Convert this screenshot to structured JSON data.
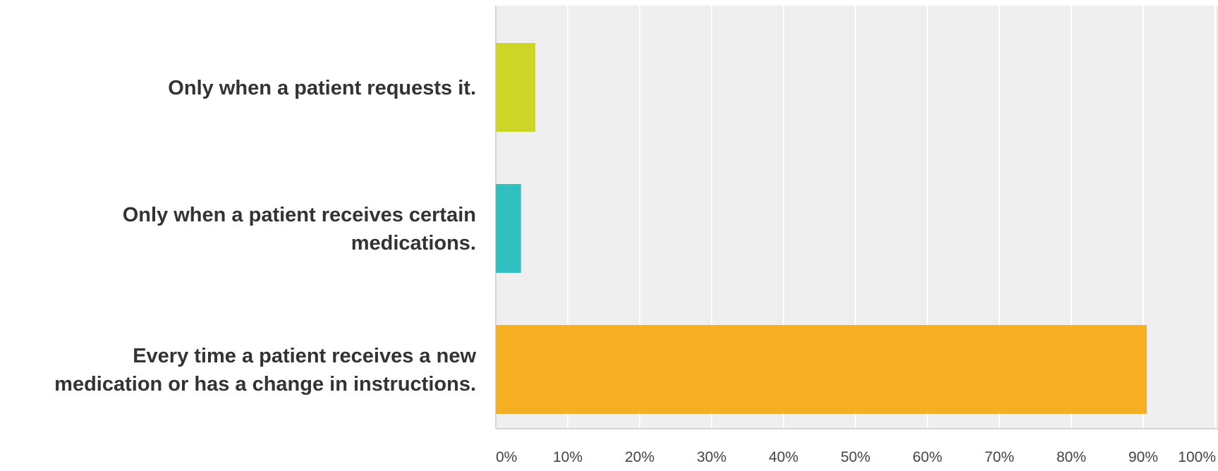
{
  "chart_data": {
    "type": "bar",
    "orientation": "horizontal",
    "categories": [
      [
        "Only when a patient requests it."
      ],
      [
        "Only when a patient receives certain",
        "medications."
      ],
      [
        "Every time a patient receives a new",
        "medication or has a change in instructions."
      ]
    ],
    "values": [
      5.5,
      3.5,
      90.5
    ],
    "bar_colors": [
      "#cdd626",
      "#31bfc0",
      "#f6ae22"
    ],
    "xlim": [
      0,
      100
    ],
    "x_ticks": [
      "0%",
      "10%",
      "20%",
      "30%",
      "40%",
      "50%",
      "60%",
      "70%",
      "80%",
      "90%",
      "100%"
    ],
    "grid": true,
    "plot_background": "#efefef",
    "title": "",
    "xlabel": "",
    "ylabel": ""
  }
}
